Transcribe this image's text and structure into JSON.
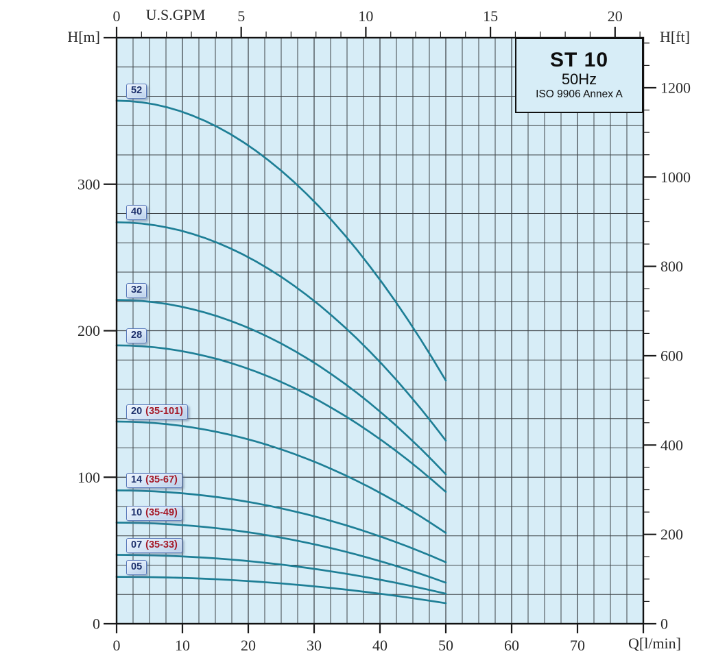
{
  "chart_data": {
    "type": "line",
    "title_box": {
      "model": "ST 10",
      "frequency": "50Hz",
      "standard": "ISO 9906 Annex A"
    },
    "axes": {
      "bottom": {
        "label": "Q[l/min]",
        "tick_labels": [
          0,
          10,
          20,
          30,
          40,
          50,
          60,
          70
        ],
        "range": [
          0,
          80
        ],
        "minor_step": 2.5
      },
      "top": {
        "label": "U.S.GPM",
        "tick_labels": [
          0,
          5,
          10,
          15,
          20
        ],
        "range": [
          0,
          21.134
        ],
        "minor_step": 1
      },
      "left": {
        "label": "H[m]",
        "tick_labels": [
          0,
          100,
          200,
          300
        ],
        "range": [
          0,
          400
        ],
        "minor_step": 20
      },
      "right": {
        "label": "H[ft]",
        "tick_labels": [
          0,
          200,
          400,
          600,
          800,
          1000,
          1200
        ],
        "range": [
          0,
          1312
        ],
        "minor_step": 50
      }
    },
    "grid": {
      "on": true,
      "x_minor_step_lmin": 2.5,
      "y_minor_step_m": 20
    },
    "curves": [
      {
        "label": "52",
        "range_label": "",
        "flow_lmin": [
          0,
          10,
          20,
          30,
          40,
          50
        ],
        "head_m": [
          357,
          349,
          326,
          288,
          235,
          166
        ]
      },
      {
        "label": "40",
        "range_label": "",
        "flow_lmin": [
          0,
          10,
          20,
          30,
          40,
          50
        ],
        "head_m": [
          274,
          268,
          250,
          220,
          179,
          125
        ]
      },
      {
        "label": "32",
        "range_label": "",
        "flow_lmin": [
          0,
          10,
          20,
          30,
          40,
          50
        ],
        "head_m": [
          221,
          216,
          202,
          178,
          145,
          102
        ]
      },
      {
        "label": "28",
        "range_label": "",
        "flow_lmin": [
          0,
          10,
          20,
          30,
          40,
          50
        ],
        "head_m": [
          190,
          186,
          174,
          154,
          126,
          90
        ]
      },
      {
        "label": "20",
        "range_label": "(35-101)",
        "flow_lmin": [
          0,
          10,
          20,
          30,
          40,
          50
        ],
        "head_m": [
          138,
          135,
          126,
          111,
          89,
          62
        ]
      },
      {
        "label": "14",
        "range_label": "(35-67)",
        "flow_lmin": [
          0,
          10,
          20,
          30,
          40,
          50
        ],
        "head_m": [
          91,
          89,
          83,
          73,
          60,
          42
        ]
      },
      {
        "label": "10",
        "range_label": "(35-49)",
        "flow_lmin": [
          0,
          10,
          20,
          30,
          40,
          50
        ],
        "head_m": [
          69,
          67,
          62,
          54,
          43,
          28
        ]
      },
      {
        "label": "07",
        "range_label": "(35-33)",
        "flow_lmin": [
          0,
          10,
          20,
          30,
          40,
          50
        ],
        "head_m": [
          47,
          46,
          43,
          37.5,
          30,
          20.5
        ]
      },
      {
        "label": "05",
        "range_label": "",
        "flow_lmin": [
          0,
          10,
          20,
          30,
          40,
          50
        ],
        "head_m": [
          32,
          31,
          29,
          25.5,
          20.5,
          14
        ]
      }
    ],
    "colors": {
      "curve": "#1e7f96",
      "plot_bg": "#d7edf7",
      "grid": "#3d4347",
      "border": "#111111",
      "tick": "#1a1a1a",
      "badge_number": "#1c2f6b",
      "badge_range": "#a51a28",
      "badge_border": "#5878ba"
    }
  }
}
